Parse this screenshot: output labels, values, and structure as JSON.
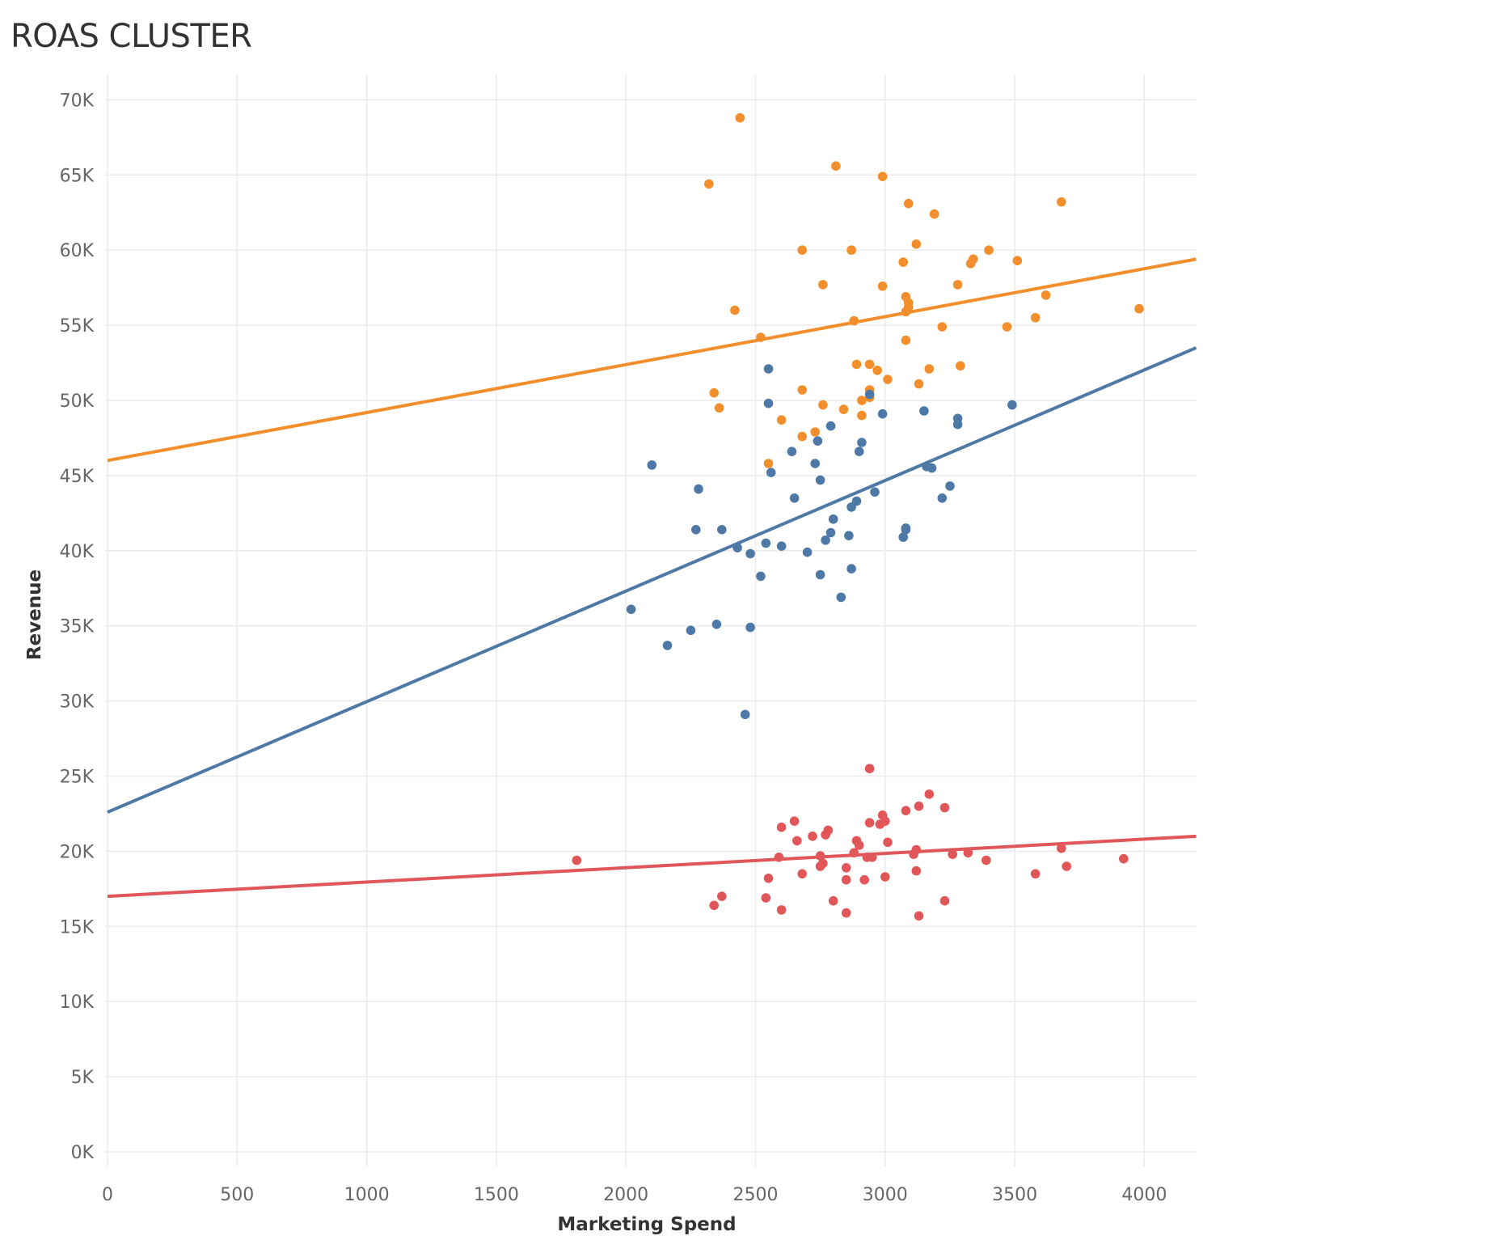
{
  "chart_data": {
    "type": "scatter",
    "title": "ROAS CLUSTER",
    "xlabel": "Marketing Spend",
    "ylabel": "Revenue",
    "xlim": [
      0,
      4200
    ],
    "ylim": [
      0,
      72000
    ],
    "x_ticks": [
      0,
      500,
      1000,
      1500,
      2000,
      2500,
      3000,
      3500,
      4000
    ],
    "y_ticks": [
      0,
      5000,
      10000,
      15000,
      20000,
      25000,
      30000,
      35000,
      40000,
      45000,
      50000,
      55000,
      60000,
      65000,
      70000
    ],
    "y_tick_labels": [
      "0K",
      "5K",
      "10K",
      "15K",
      "20K",
      "25K",
      "30K",
      "35K",
      "40K",
      "45K",
      "50K",
      "55K",
      "60K",
      "65K",
      "70K"
    ],
    "grid": true,
    "series": [
      {
        "color": "#f28e2b",
        "trend_line": {
          "x": [
            0,
            4200
          ],
          "y": [
            46000,
            59400
          ]
        },
        "points": [
          [
            2440,
            68800
          ],
          [
            2810,
            65600
          ],
          [
            2320,
            64400
          ],
          [
            2990,
            64900
          ],
          [
            3090,
            63100
          ],
          [
            3190,
            62400
          ],
          [
            3680,
            63200
          ],
          [
            3120,
            60400
          ],
          [
            2680,
            60000
          ],
          [
            2870,
            60000
          ],
          [
            3070,
            59200
          ],
          [
            3340,
            59400
          ],
          [
            3330,
            59100
          ],
          [
            3400,
            60000
          ],
          [
            3510,
            59300
          ],
          [
            2760,
            57700
          ],
          [
            2990,
            57600
          ],
          [
            3080,
            56900
          ],
          [
            3090,
            56500
          ],
          [
            3090,
            56200
          ],
          [
            3080,
            55900
          ],
          [
            3280,
            57700
          ],
          [
            3620,
            57000
          ],
          [
            2420,
            56000
          ],
          [
            3580,
            55500
          ],
          [
            3220,
            54900
          ],
          [
            3470,
            54900
          ],
          [
            3980,
            56100
          ],
          [
            2520,
            54200
          ],
          [
            3080,
            54000
          ],
          [
            2880,
            55300
          ],
          [
            2890,
            52400
          ],
          [
            2940,
            52400
          ],
          [
            2970,
            52000
          ],
          [
            3170,
            52100
          ],
          [
            3290,
            52300
          ],
          [
            3010,
            51400
          ],
          [
            3130,
            51100
          ],
          [
            2940,
            50700
          ],
          [
            2340,
            50500
          ],
          [
            2680,
            50700
          ],
          [
            2910,
            50000
          ],
          [
            2940,
            50200
          ],
          [
            2360,
            49500
          ],
          [
            2760,
            49700
          ],
          [
            2840,
            49400
          ],
          [
            2910,
            49000
          ],
          [
            2600,
            48700
          ],
          [
            2680,
            47600
          ],
          [
            2730,
            47900
          ],
          [
            2550,
            45800
          ]
        ]
      },
      {
        "color": "#4e79a7",
        "trend_line": {
          "x": [
            0,
            4200
          ],
          "y": [
            22600,
            53500
          ]
        },
        "points": [
          [
            2550,
            52100
          ],
          [
            2550,
            49800
          ],
          [
            2940,
            50400
          ],
          [
            2990,
            49100
          ],
          [
            3150,
            49300
          ],
          [
            3280,
            48800
          ],
          [
            3280,
            48400
          ],
          [
            3490,
            49700
          ],
          [
            2790,
            48300
          ],
          [
            2740,
            47300
          ],
          [
            2640,
            46600
          ],
          [
            2900,
            46600
          ],
          [
            2910,
            47200
          ],
          [
            2100,
            45700
          ],
          [
            2730,
            45800
          ],
          [
            2560,
            45200
          ],
          [
            2750,
            44700
          ],
          [
            3160,
            45600
          ],
          [
            3180,
            45500
          ],
          [
            3250,
            44300
          ],
          [
            2280,
            44100
          ],
          [
            2650,
            43500
          ],
          [
            2890,
            43300
          ],
          [
            2960,
            43900
          ],
          [
            3220,
            43500
          ],
          [
            2870,
            42900
          ],
          [
            2800,
            42100
          ],
          [
            2270,
            41400
          ],
          [
            2370,
            41400
          ],
          [
            2790,
            41200
          ],
          [
            2860,
            41000
          ],
          [
            3080,
            41500
          ],
          [
            3080,
            41400
          ],
          [
            2540,
            40500
          ],
          [
            2600,
            40300
          ],
          [
            2430,
            40200
          ],
          [
            2770,
            40700
          ],
          [
            3070,
            40900
          ],
          [
            2480,
            39800
          ],
          [
            2700,
            39900
          ],
          [
            2870,
            38800
          ],
          [
            2520,
            38300
          ],
          [
            2750,
            38400
          ],
          [
            2830,
            36900
          ],
          [
            2020,
            36100
          ],
          [
            2250,
            34700
          ],
          [
            2350,
            35100
          ],
          [
            2480,
            34900
          ],
          [
            2160,
            33700
          ],
          [
            2460,
            29100
          ]
        ]
      },
      {
        "color": "#e15759",
        "trend_line": {
          "x": [
            0,
            4200
          ],
          "y": [
            17000,
            21000
          ]
        },
        "points": [
          [
            2940,
            25500
          ],
          [
            3170,
            23800
          ],
          [
            3130,
            23000
          ],
          [
            3230,
            22900
          ],
          [
            3080,
            22700
          ],
          [
            2990,
            22400
          ],
          [
            3000,
            22000
          ],
          [
            2650,
            22000
          ],
          [
            2940,
            21900
          ],
          [
            2980,
            21800
          ],
          [
            2600,
            21600
          ],
          [
            2780,
            21400
          ],
          [
            2770,
            21100
          ],
          [
            2720,
            21000
          ],
          [
            2660,
            20700
          ],
          [
            2890,
            20700
          ],
          [
            3010,
            20600
          ],
          [
            2900,
            20400
          ],
          [
            3120,
            20100
          ],
          [
            2880,
            19900
          ],
          [
            3680,
            20200
          ],
          [
            3110,
            19800
          ],
          [
            3260,
            19800
          ],
          [
            3320,
            19900
          ],
          [
            2590,
            19600
          ],
          [
            2750,
            19700
          ],
          [
            2930,
            19600
          ],
          [
            2950,
            19600
          ],
          [
            3390,
            19400
          ],
          [
            3920,
            19500
          ],
          [
            1810,
            19400
          ],
          [
            2760,
            19200
          ],
          [
            2750,
            19000
          ],
          [
            2850,
            18900
          ],
          [
            3700,
            19000
          ],
          [
            3120,
            18700
          ],
          [
            2680,
            18500
          ],
          [
            3580,
            18500
          ],
          [
            3000,
            18300
          ],
          [
            2550,
            18200
          ],
          [
            2850,
            18100
          ],
          [
            2920,
            18100
          ],
          [
            2370,
            17000
          ],
          [
            2540,
            16900
          ],
          [
            2800,
            16700
          ],
          [
            3230,
            16700
          ],
          [
            2340,
            16400
          ],
          [
            2600,
            16100
          ],
          [
            2850,
            15900
          ],
          [
            3130,
            15700
          ]
        ]
      }
    ]
  }
}
